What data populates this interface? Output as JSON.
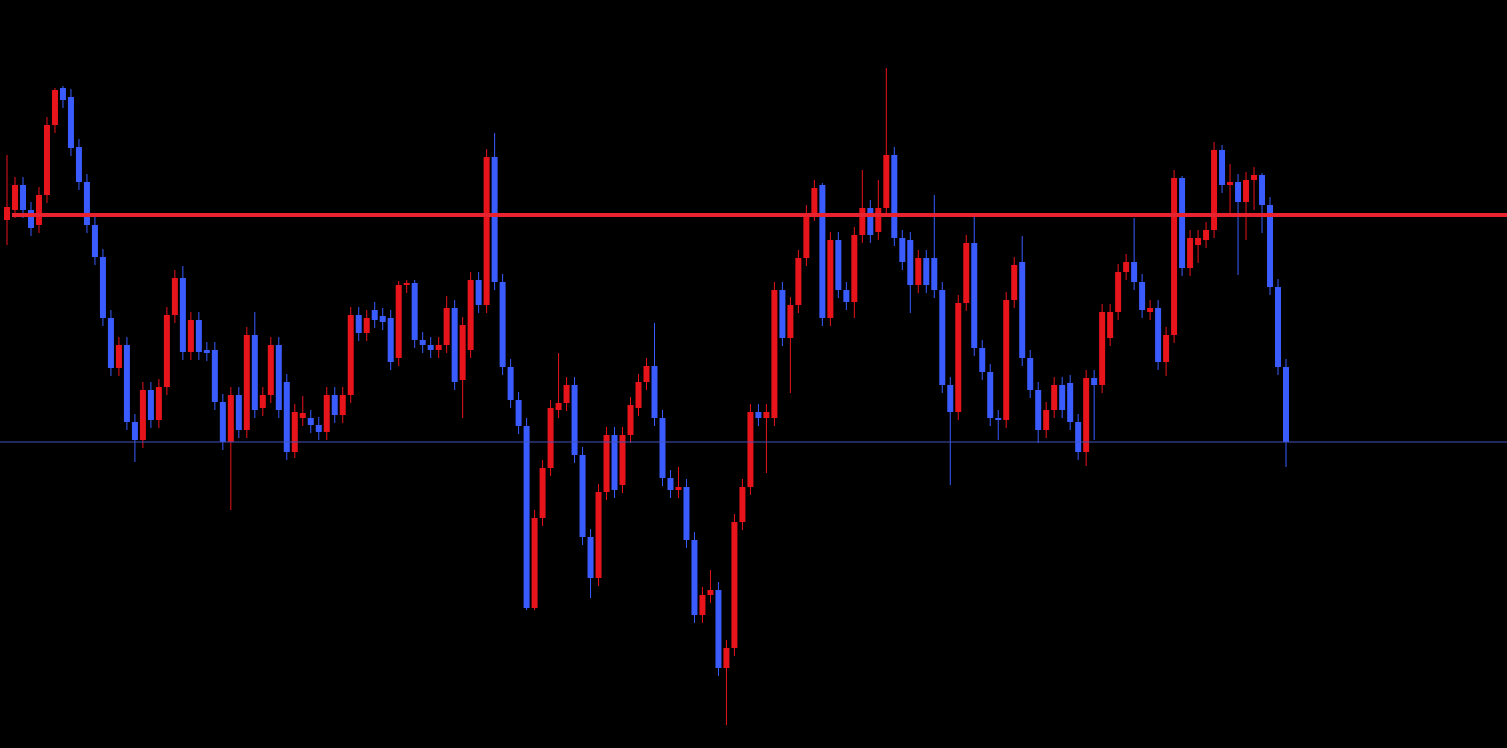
{
  "chart_data": {
    "type": "candlestick",
    "up_color": "#e8141c",
    "down_color": "#3a5cff",
    "background": "#000000",
    "ylim": [
      0,
      748
    ],
    "hlines": [
      {
        "value": 533,
        "color": "#e8222e"
      },
      {
        "value": 306,
        "color": "#3f4fb8"
      }
    ],
    "open": [
      528,
      538,
      563,
      538,
      523,
      553,
      623,
      660,
      651,
      601,
      566,
      523,
      491,
      430,
      380,
      403,
      326,
      308,
      358,
      328,
      361,
      433,
      470,
      396,
      428,
      398,
      398,
      346,
      306,
      353,
      318,
      413,
      340,
      353,
      403,
      366,
      296,
      330,
      330,
      323,
      316,
      353,
      333,
      353,
      433,
      415,
      438,
      432,
      430,
      390,
      463,
      465,
      408,
      403,
      398,
      403,
      440,
      368,
      398,
      468,
      443,
      591,
      466,
      381,
      348,
      322,
      140,
      230,
      280,
      338,
      345,
      363,
      293,
      211,
      170,
      256,
      313,
      263,
      313,
      340,
      366,
      382,
      330,
      270,
      258,
      261,
      208,
      133,
      153,
      158,
      80,
      100,
      226,
      261,
      336,
      330,
      330,
      458,
      410,
      443,
      490,
      535,
      563,
      430,
      508,
      458,
      446,
      513,
      540,
      516,
      540,
      593,
      510,
      508,
      463,
      490,
      490,
      458,
      363,
      336,
      445,
      505,
      400,
      376,
      330,
      328,
      448,
      486,
      390,
      358,
      318,
      338,
      363,
      365,
      326,
      296,
      370,
      363,
      410,
      436,
      476,
      486,
      466,
      436,
      440,
      386,
      413,
      570,
      480,
      503,
      508,
      518,
      598,
      563,
      566,
      546,
      568,
      573,
      543,
      461,
      381
    ],
    "high": [
      593,
      571,
      571,
      546,
      561,
      631,
      660,
      662,
      659,
      609,
      574,
      531,
      499,
      438,
      411,
      411,
      334,
      366,
      366,
      369,
      441,
      478,
      482,
      436,
      436,
      406,
      406,
      354,
      361,
      361,
      421,
      436,
      361,
      411,
      411,
      374,
      344,
      352,
      338,
      331,
      361,
      361,
      361,
      441,
      441,
      438,
      446,
      440,
      438,
      467,
      468,
      468,
      416,
      411,
      411,
      452,
      448,
      431,
      476,
      476,
      599,
      615,
      474,
      389,
      356,
      330,
      238,
      288,
      348,
      395,
      371,
      371,
      301,
      219,
      264,
      321,
      321,
      321,
      351,
      374,
      390,
      425,
      338,
      278,
      281,
      269,
      216,
      161,
      178,
      166,
      108,
      234,
      269,
      344,
      344,
      344,
      466,
      466,
      451,
      498,
      543,
      568,
      565,
      516,
      516,
      466,
      521,
      578,
      548,
      568,
      680,
      601,
      518,
      516,
      498,
      498,
      553,
      466,
      371,
      453,
      513,
      535,
      408,
      384,
      338,
      456,
      491,
      512,
      398,
      366,
      346,
      371,
      371,
      373,
      334,
      378,
      378,
      444,
      444,
      484,
      494,
      530,
      474,
      448,
      448,
      421,
      578,
      572,
      518,
      518,
      526,
      606,
      603,
      584,
      574,
      576,
      581,
      575,
      551,
      469,
      389
    ],
    "low": [
      503,
      530,
      530,
      512,
      515,
      545,
      615,
      640,
      592,
      558,
      515,
      483,
      422,
      372,
      372,
      318,
      286,
      300,
      320,
      320,
      353,
      425,
      388,
      388,
      388,
      387,
      338,
      298,
      238,
      310,
      310,
      330,
      332,
      345,
      330,
      288,
      290,
      322,
      315,
      308,
      308,
      325,
      325,
      345,
      407,
      407,
      420,
      418,
      378,
      382,
      455,
      400,
      395,
      390,
      390,
      395,
      358,
      330,
      390,
      435,
      435,
      458,
      373,
      340,
      314,
      138,
      138,
      222,
      272,
      330,
      337,
      285,
      203,
      150,
      162,
      248,
      250,
      255,
      305,
      332,
      358,
      322,
      262,
      250,
      250,
      200,
      125,
      125,
      145,
      72,
      23,
      92,
      218,
      253,
      322,
      275,
      322,
      402,
      355,
      435,
      482,
      527,
      422,
      422,
      450,
      438,
      430,
      505,
      505,
      508,
      532,
      502,
      478,
      435,
      455,
      455,
      450,
      355,
      263,
      328,
      437,
      392,
      368,
      322,
      308,
      320,
      440,
      382,
      350,
      305,
      310,
      330,
      330,
      318,
      288,
      282,
      308,
      355,
      402,
      428,
      468,
      458,
      430,
      428,
      378,
      372,
      405,
      472,
      472,
      485,
      500,
      510,
      555,
      535,
      473,
      508,
      538,
      515,
      453,
      373,
      281
    ],
    "close": [
      541,
      563,
      538,
      520,
      553,
      623,
      658,
      648,
      600,
      566,
      523,
      491,
      430,
      380,
      403,
      326,
      308,
      358,
      328,
      361,
      433,
      470,
      396,
      428,
      396,
      395,
      346,
      306,
      353,
      318,
      413,
      338,
      353,
      403,
      338,
      296,
      336,
      335,
      323,
      316,
      353,
      333,
      353,
      433,
      415,
      430,
      428,
      426,
      386,
      463,
      465,
      408,
      403,
      398,
      403,
      440,
      366,
      423,
      468,
      443,
      591,
      466,
      381,
      348,
      322,
      140,
      230,
      280,
      340,
      345,
      363,
      293,
      211,
      170,
      256,
      313,
      258,
      313,
      343,
      366,
      382,
      330,
      270,
      258,
      261,
      208,
      133,
      153,
      158,
      80,
      100,
      226,
      261,
      336,
      330,
      336,
      458,
      410,
      443,
      490,
      535,
      560,
      430,
      508,
      458,
      446,
      513,
      540,
      513,
      540,
      593,
      510,
      486,
      463,
      490,
      463,
      458,
      363,
      336,
      445,
      505,
      400,
      376,
      330,
      328,
      448,
      483,
      390,
      358,
      318,
      338,
      363,
      338,
      326,
      296,
      370,
      363,
      436,
      436,
      476,
      486,
      466,
      438,
      440,
      386,
      413,
      570,
      480,
      510,
      510,
      518,
      598,
      563,
      566,
      546,
      568,
      573,
      543,
      461,
      381,
      306
    ]
  }
}
